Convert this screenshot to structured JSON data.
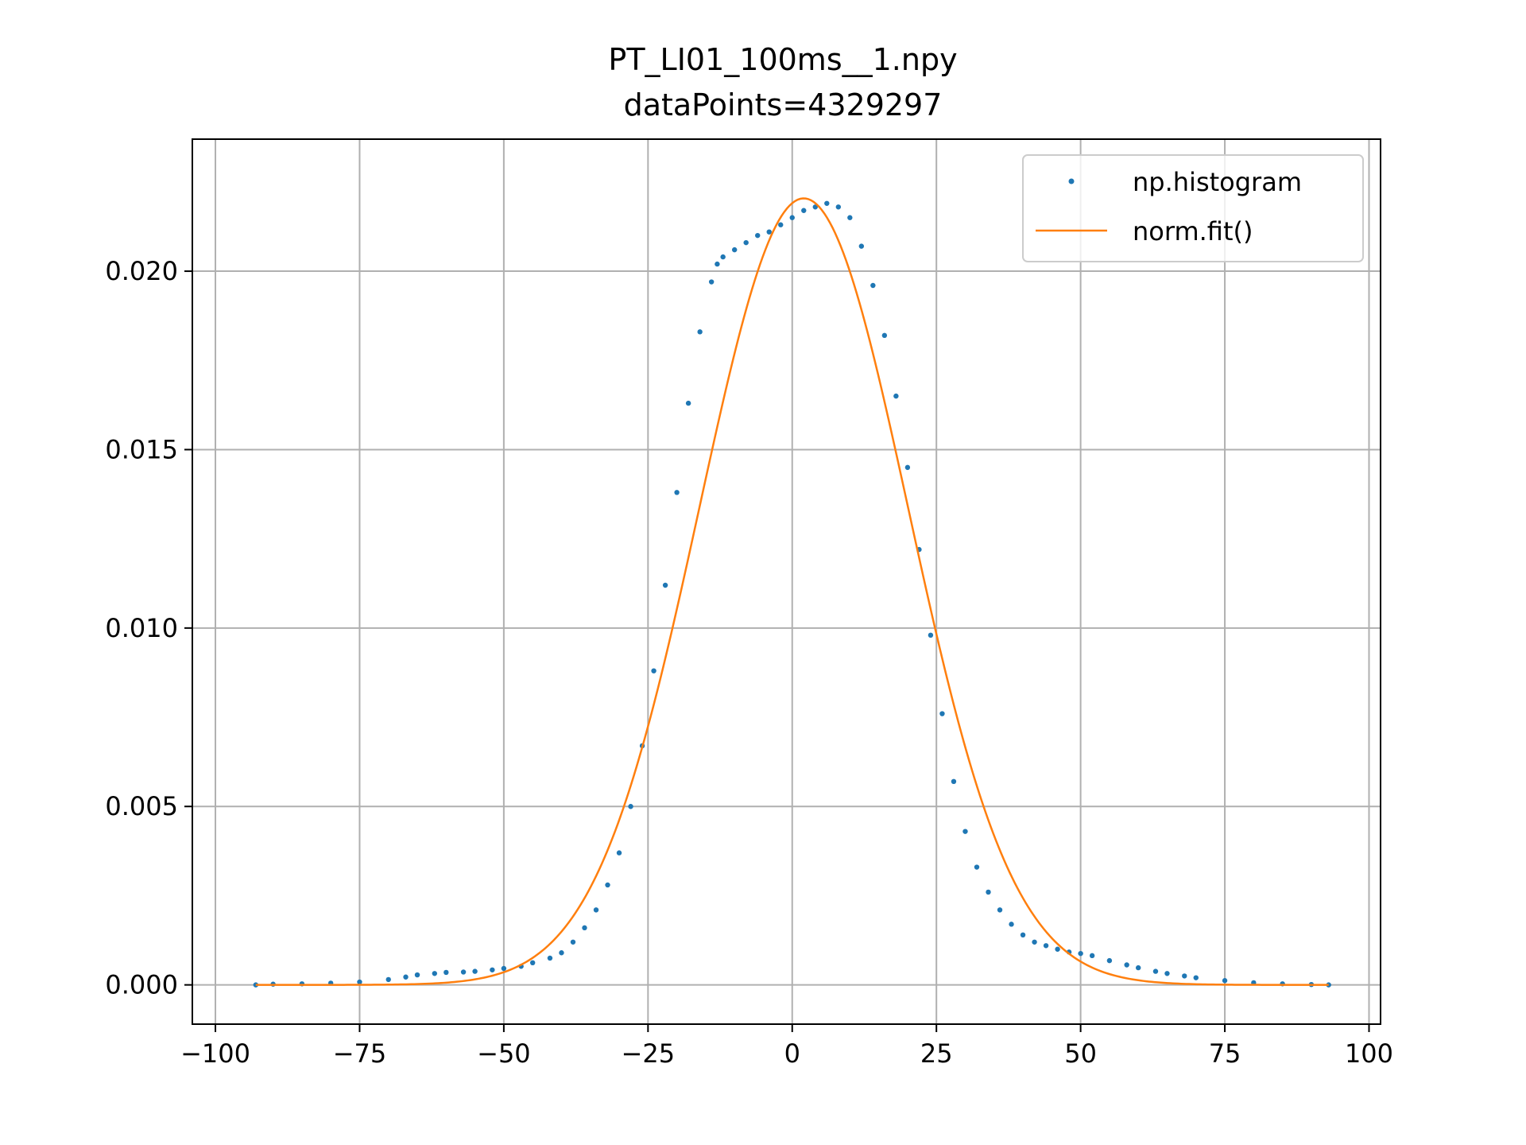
{
  "chart_data": {
    "type": "scatter",
    "title": "PT_LI01_100ms__1.npy",
    "subtitle": "dataPoints=4329297",
    "xlabel": "",
    "ylabel": "",
    "xlim": [
      -104,
      102
    ],
    "ylim": [
      -0.0011,
      0.0237
    ],
    "xticks": [
      -100,
      -75,
      -50,
      -25,
      0,
      25,
      50,
      75,
      100
    ],
    "xtick_labels": [
      "−100",
      "−75",
      "−50",
      "−25",
      "0",
      "25",
      "50",
      "75",
      "100"
    ],
    "yticks": [
      0.0,
      0.005,
      0.01,
      0.015,
      0.02
    ],
    "ytick_labels": [
      "0.000",
      "0.005",
      "0.010",
      "0.015",
      "0.020"
    ],
    "grid": true,
    "legend_position": "top-right",
    "series": [
      {
        "name": "np.histogram",
        "kind": "scatter",
        "color": "#1f77b4",
        "x": [
          -93,
          -90,
          -85,
          -80,
          -75,
          -70,
          -67,
          -65,
          -62,
          -60,
          -57,
          -55,
          -52,
          -50,
          -47,
          -45,
          -42,
          -40,
          -38,
          -36,
          -34,
          -32,
          -30,
          -28,
          -26,
          -24,
          -22,
          -20,
          -18,
          -16,
          -14,
          -13,
          -12,
          -10,
          -8,
          -6,
          -4,
          -2,
          0,
          2,
          4,
          6,
          8,
          10,
          12,
          14,
          16,
          18,
          20,
          22,
          24,
          26,
          28,
          30,
          32,
          34,
          36,
          38,
          40,
          42,
          44,
          46,
          48,
          50,
          52,
          55,
          58,
          60,
          63,
          65,
          68,
          70,
          75,
          80,
          85,
          90,
          93
        ],
        "y": [
          0.0,
          2e-05,
          3e-05,
          5e-05,
          8e-05,
          0.00015,
          0.00022,
          0.00028,
          0.00032,
          0.00035,
          0.00036,
          0.00038,
          0.00042,
          0.00046,
          0.00052,
          0.00062,
          0.00075,
          0.0009,
          0.0012,
          0.0016,
          0.0021,
          0.0028,
          0.0037,
          0.005,
          0.0067,
          0.0088,
          0.0112,
          0.0138,
          0.0163,
          0.0183,
          0.0197,
          0.0202,
          0.0204,
          0.0206,
          0.0208,
          0.021,
          0.0211,
          0.0213,
          0.0215,
          0.0217,
          0.0218,
          0.0219,
          0.0218,
          0.0215,
          0.0207,
          0.0196,
          0.0182,
          0.0165,
          0.0145,
          0.0122,
          0.0098,
          0.0076,
          0.0057,
          0.0043,
          0.0033,
          0.0026,
          0.0021,
          0.0017,
          0.0014,
          0.0012,
          0.0011,
          0.001,
          0.00092,
          0.00088,
          0.00082,
          0.00068,
          0.00056,
          0.00048,
          0.00038,
          0.00032,
          0.00025,
          0.0002,
          0.00012,
          6e-05,
          3e-05,
          1e-05,
          0.0
        ]
      },
      {
        "name": "norm.fit()",
        "kind": "line",
        "color": "#ff7f0e",
        "mean": 2.0,
        "sigma": 18.1,
        "xrange": [
          -93,
          93
        ]
      }
    ]
  }
}
